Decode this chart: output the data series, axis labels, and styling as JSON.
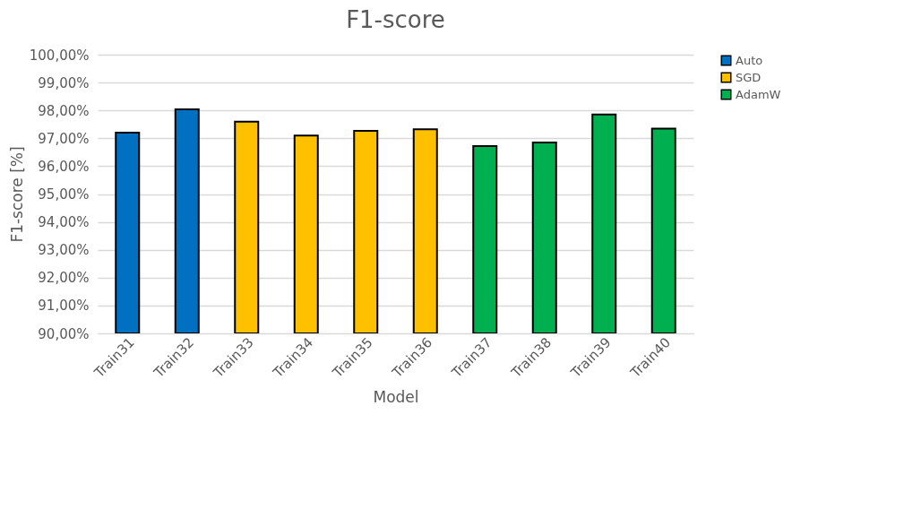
{
  "chart_data": {
    "type": "bar",
    "title": "F1-score",
    "xlabel": "Model",
    "ylabel": "F1-score [%]",
    "categories": [
      "Train31",
      "Train32",
      "Train33",
      "Train34",
      "Train35",
      "Train36",
      "Train37",
      "Train38",
      "Train39",
      "Train40"
    ],
    "series": [
      {
        "name": "Auto",
        "color": "#0070c0",
        "values": [
          97.2,
          98.04,
          null,
          null,
          null,
          null,
          null,
          null,
          null,
          null
        ]
      },
      {
        "name": "SGD",
        "color": "#ffc000",
        "values": [
          null,
          null,
          97.6,
          97.1,
          97.27,
          97.32,
          null,
          null,
          null,
          null
        ]
      },
      {
        "name": "AdamW",
        "color": "#00b050",
        "values": [
          null,
          null,
          null,
          null,
          null,
          null,
          96.72,
          96.85,
          97.85,
          97.35
        ]
      }
    ],
    "ylim": [
      90,
      100
    ],
    "yticks": [
      {
        "value": 90,
        "label": "90,00%"
      },
      {
        "value": 91,
        "label": "91,00%"
      },
      {
        "value": 92,
        "label": "92,00%"
      },
      {
        "value": 93,
        "label": "93,00%"
      },
      {
        "value": 94,
        "label": "94,00%"
      },
      {
        "value": 95,
        "label": "95,00%"
      },
      {
        "value": 96,
        "label": "96,00%"
      },
      {
        "value": 97,
        "label": "97,00%"
      },
      {
        "value": 98,
        "label": "98,00%"
      },
      {
        "value": 99,
        "label": "99,00%"
      },
      {
        "value": 100,
        "label": "100,00%"
      }
    ],
    "grid": "y",
    "legend": "top right"
  }
}
